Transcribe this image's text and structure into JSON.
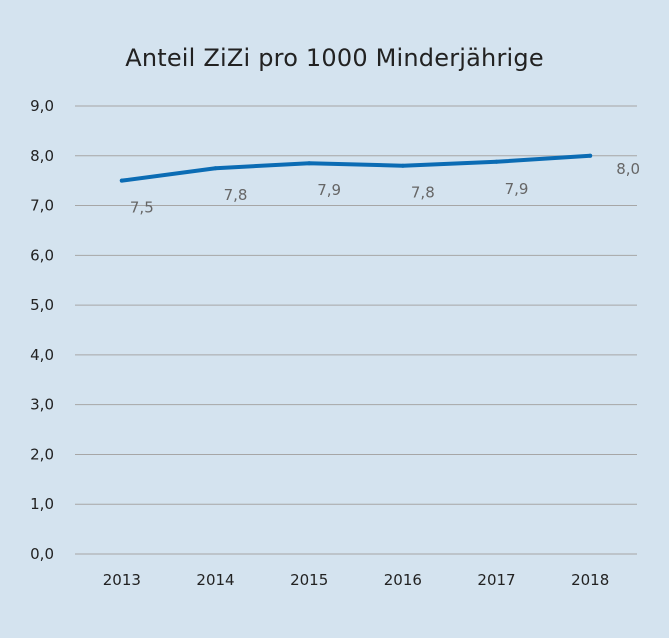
{
  "chart_data": {
    "type": "line",
    "title": "Anteil ZiZi pro 1000 Minderjährige",
    "xlabel": "",
    "ylabel": "",
    "categories": [
      "2013",
      "2014",
      "2015",
      "2016",
      "2017",
      "2018"
    ],
    "series": [
      {
        "values": [
          7.5,
          7.75,
          7.85,
          7.8,
          7.88,
          8.0
        ],
        "labels": [
          "7,5",
          "7,8",
          "7,9",
          "7,8",
          "7,9",
          "8,0"
        ]
      }
    ],
    "y_ticks": [
      "0,0",
      "1,0",
      "2,0",
      "3,0",
      "4,0",
      "5,0",
      "6,0",
      "7,0",
      "8,0",
      "9,0"
    ],
    "ylim": [
      0,
      9
    ],
    "grid": true,
    "legend": "none",
    "colors": {
      "background": "#d4e3ef",
      "line": "#0b6cb4",
      "grid": "#a6a6a6",
      "label": "#666666"
    }
  }
}
